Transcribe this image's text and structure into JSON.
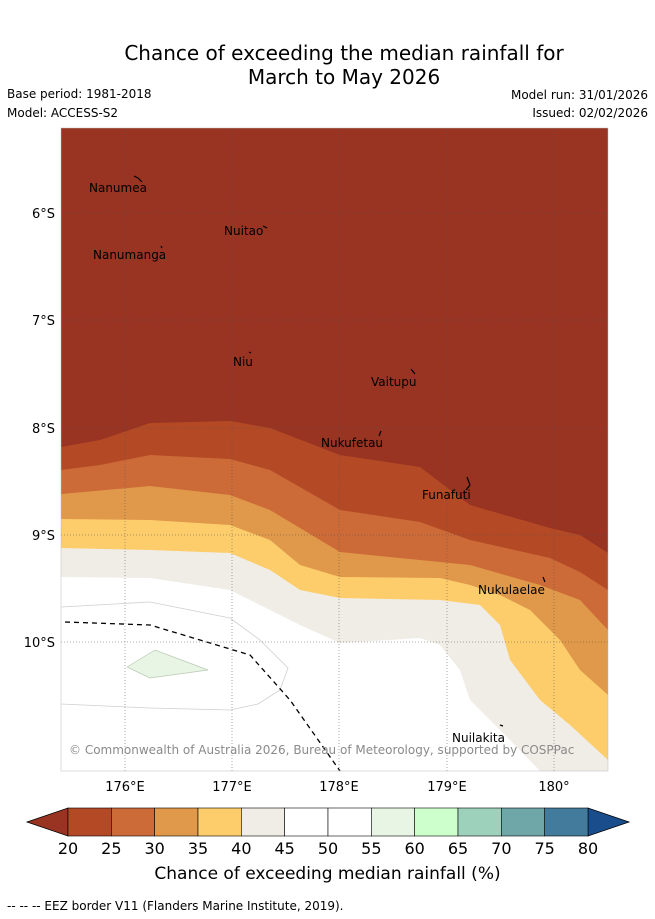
{
  "header": {
    "title_line1": "Chance of exceeding the median rainfall for",
    "title_line2": "March to May 2026",
    "base_period": "Base period: 1981-2018",
    "model": "Model: ACCESS-S2",
    "model_run": "Model run: 31/01/2026",
    "issued": "Issued: 02/02/2026"
  },
  "map": {
    "lat_labels": [
      "6°S",
      "7°S",
      "8°S",
      "9°S",
      "10°S"
    ],
    "lon_labels": [
      "176°E",
      "177°E",
      "178°E",
      "179°E",
      "180°"
    ],
    "places": [
      "Nanumea",
      "Nuitao",
      "Nanumanga",
      "Niu",
      "Vaitupu",
      "Nukufetau",
      "Funafuti",
      "Nukulaelae",
      "Nuilakita"
    ],
    "copyright": "© Commonwealth of Australia 2026, Bureau of Meteorology, supported by COSPPac"
  },
  "colorbar": {
    "ticks": [
      "20",
      "25",
      "30",
      "35",
      "40",
      "45",
      "50",
      "55",
      "60",
      "65",
      "70",
      "75",
      "80"
    ],
    "colors": [
      "#b34a25",
      "#cc6a38",
      "#e0984a",
      "#fdcd6c",
      "#f0ece6",
      "#ffffff",
      "#ffffff",
      "#e8f5e5",
      "#ccffcc",
      "#9dd1bb",
      "#6fa7a8",
      "#427b9b"
    ],
    "under_color": "#993322",
    "over_color": "#1a4d8c",
    "title": "Chance of exceeding median rainfall (%)"
  },
  "footer": {
    "legend": "-- -- -- EEZ border V11 (Flanders Marine Institute, 2019)."
  }
}
